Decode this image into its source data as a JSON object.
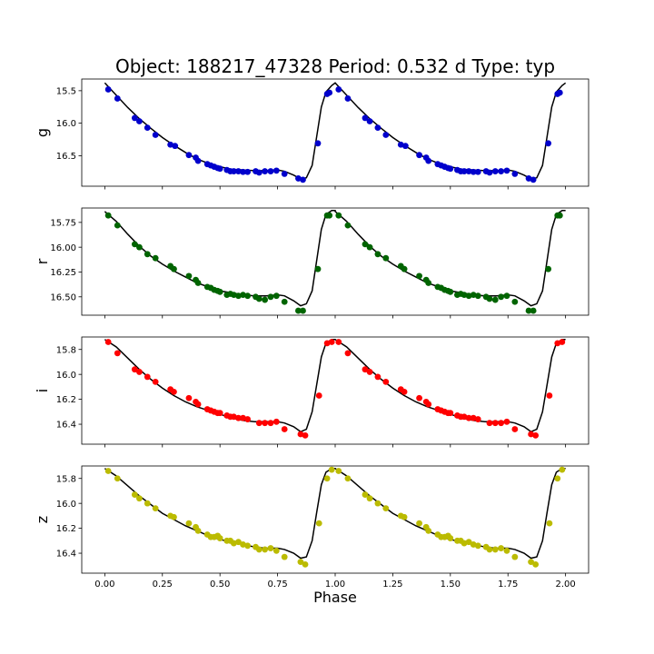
{
  "chart_data": {
    "type": "scatter",
    "title": "Object: 188217_47328    Period: 0.532 d    Type: typ",
    "xlabel": "Phase",
    "xlim": [
      -0.1,
      2.1
    ],
    "x_ticks": [
      0.0,
      0.25,
      0.5,
      0.75,
      1.0,
      1.25,
      1.5,
      1.75,
      2.0
    ],
    "x_tick_labels": [
      "0.00",
      "0.25",
      "0.50",
      "0.75",
      "1.00",
      "1.25",
      "1.50",
      "1.75",
      "2.00"
    ],
    "panels": [
      {
        "band": "g",
        "color": "#0000cc",
        "ylim": [
          15.32,
          16.97
        ],
        "inverted": true,
        "y_ticks": [
          15.5,
          16.0,
          16.5
        ],
        "y_tick_labels": [
          "15.5",
          "16.0",
          "16.5"
        ],
        "points": [
          [
            0.015,
            15.48
          ],
          [
            0.055,
            15.62
          ],
          [
            0.13,
            15.92
          ],
          [
            0.15,
            15.97
          ],
          [
            0.185,
            16.07
          ],
          [
            0.22,
            16.18
          ],
          [
            0.285,
            16.33
          ],
          [
            0.305,
            16.35
          ],
          [
            0.365,
            16.49
          ],
          [
            0.395,
            16.53
          ],
          [
            0.405,
            16.58
          ],
          [
            0.445,
            16.63
          ],
          [
            0.46,
            16.65
          ],
          [
            0.475,
            16.67
          ],
          [
            0.49,
            16.69
          ],
          [
            0.5,
            16.7
          ],
          [
            0.53,
            16.72
          ],
          [
            0.545,
            16.74
          ],
          [
            0.56,
            16.74
          ],
          [
            0.58,
            16.74
          ],
          [
            0.6,
            16.75
          ],
          [
            0.62,
            16.75
          ],
          [
            0.655,
            16.74
          ],
          [
            0.67,
            16.76
          ],
          [
            0.695,
            16.74
          ],
          [
            0.72,
            16.74
          ],
          [
            0.745,
            16.73
          ],
          [
            0.78,
            16.78
          ],
          [
            0.84,
            16.85
          ],
          [
            0.86,
            16.87
          ],
          [
            0.925,
            16.31
          ],
          [
            0.965,
            15.55
          ],
          [
            0.975,
            15.53
          ]
        ],
        "model": [
          [
            0.0,
            15.38
          ],
          [
            0.05,
            15.57
          ],
          [
            0.1,
            15.76
          ],
          [
            0.15,
            15.93
          ],
          [
            0.2,
            16.08
          ],
          [
            0.25,
            16.22
          ],
          [
            0.3,
            16.34
          ],
          [
            0.35,
            16.45
          ],
          [
            0.4,
            16.55
          ],
          [
            0.45,
            16.62
          ],
          [
            0.5,
            16.67
          ],
          [
            0.55,
            16.71
          ],
          [
            0.6,
            16.72
          ],
          [
            0.65,
            16.73
          ],
          [
            0.7,
            16.73
          ],
          [
            0.75,
            16.72
          ],
          [
            0.78,
            16.74
          ],
          [
            0.82,
            16.8
          ],
          [
            0.85,
            16.86
          ],
          [
            0.875,
            16.84
          ],
          [
            0.9,
            16.65
          ],
          [
            0.92,
            16.2
          ],
          [
            0.94,
            15.75
          ],
          [
            0.96,
            15.52
          ],
          [
            0.985,
            15.42
          ],
          [
            1.0,
            15.38
          ]
        ]
      },
      {
        "band": "r",
        "color": "#006400",
        "ylim": [
          15.605,
          16.685
        ],
        "inverted": true,
        "y_ticks": [
          15.75,
          16.0,
          16.25,
          16.5
        ],
        "y_tick_labels": [
          "15.75",
          "16.00",
          "16.25",
          "16.50"
        ],
        "points": [
          [
            0.015,
            15.68
          ],
          [
            0.055,
            15.78
          ],
          [
            0.13,
            15.97
          ],
          [
            0.15,
            16.0
          ],
          [
            0.185,
            16.07
          ],
          [
            0.22,
            16.11
          ],
          [
            0.285,
            16.19
          ],
          [
            0.3,
            16.22
          ],
          [
            0.365,
            16.29
          ],
          [
            0.395,
            16.33
          ],
          [
            0.405,
            16.36
          ],
          [
            0.445,
            16.4
          ],
          [
            0.46,
            16.41
          ],
          [
            0.475,
            16.43
          ],
          [
            0.49,
            16.44
          ],
          [
            0.5,
            16.45
          ],
          [
            0.53,
            16.48
          ],
          [
            0.545,
            16.47
          ],
          [
            0.56,
            16.48
          ],
          [
            0.58,
            16.49
          ],
          [
            0.6,
            16.48
          ],
          [
            0.62,
            16.49
          ],
          [
            0.655,
            16.5
          ],
          [
            0.67,
            16.52
          ],
          [
            0.695,
            16.53
          ],
          [
            0.72,
            16.5
          ],
          [
            0.745,
            16.49
          ],
          [
            0.78,
            16.55
          ],
          [
            0.84,
            16.64
          ],
          [
            0.86,
            16.64
          ],
          [
            0.925,
            16.22
          ],
          [
            0.965,
            15.68
          ],
          [
            0.975,
            15.68
          ]
        ],
        "model": [
          [
            0.0,
            15.64
          ],
          [
            0.05,
            15.74
          ],
          [
            0.1,
            15.87
          ],
          [
            0.15,
            15.99
          ],
          [
            0.2,
            16.09
          ],
          [
            0.25,
            16.17
          ],
          [
            0.3,
            16.24
          ],
          [
            0.35,
            16.3
          ],
          [
            0.4,
            16.36
          ],
          [
            0.45,
            16.4
          ],
          [
            0.5,
            16.44
          ],
          [
            0.55,
            16.46
          ],
          [
            0.6,
            16.48
          ],
          [
            0.65,
            16.49
          ],
          [
            0.7,
            16.49
          ],
          [
            0.75,
            16.48
          ],
          [
            0.78,
            16.49
          ],
          [
            0.82,
            16.54
          ],
          [
            0.85,
            16.59
          ],
          [
            0.875,
            16.57
          ],
          [
            0.9,
            16.44
          ],
          [
            0.92,
            16.13
          ],
          [
            0.94,
            15.82
          ],
          [
            0.96,
            15.67
          ],
          [
            0.985,
            15.63
          ],
          [
            1.0,
            15.63
          ]
        ]
      },
      {
        "band": "i",
        "color": "#ff0000",
        "ylim": [
          15.7,
          16.56
        ],
        "inverted": true,
        "y_ticks": [
          15.8,
          16.0,
          16.2,
          16.4
        ],
        "y_tick_labels": [
          "15.8",
          "16.0",
          "16.2",
          "16.4"
        ],
        "points": [
          [
            0.015,
            15.74
          ],
          [
            0.055,
            15.83
          ],
          [
            0.13,
            15.96
          ],
          [
            0.15,
            15.98
          ],
          [
            0.185,
            16.02
          ],
          [
            0.22,
            16.06
          ],
          [
            0.285,
            16.12
          ],
          [
            0.3,
            16.14
          ],
          [
            0.365,
            16.19
          ],
          [
            0.395,
            16.22
          ],
          [
            0.405,
            16.24
          ],
          [
            0.445,
            16.28
          ],
          [
            0.46,
            16.29
          ],
          [
            0.475,
            16.3
          ],
          [
            0.49,
            16.31
          ],
          [
            0.5,
            16.31
          ],
          [
            0.53,
            16.33
          ],
          [
            0.545,
            16.34
          ],
          [
            0.56,
            16.34
          ],
          [
            0.58,
            16.35
          ],
          [
            0.6,
            16.35
          ],
          [
            0.62,
            16.36
          ],
          [
            0.67,
            16.39
          ],
          [
            0.695,
            16.39
          ],
          [
            0.72,
            16.39
          ],
          [
            0.745,
            16.38
          ],
          [
            0.78,
            16.44
          ],
          [
            0.85,
            16.48
          ],
          [
            0.87,
            16.49
          ],
          [
            0.93,
            16.17
          ],
          [
            0.965,
            15.75
          ],
          [
            0.985,
            15.74
          ]
        ],
        "model": [
          [
            0.0,
            15.72
          ],
          [
            0.05,
            15.78
          ],
          [
            0.1,
            15.87
          ],
          [
            0.15,
            15.96
          ],
          [
            0.2,
            16.04
          ],
          [
            0.25,
            16.11
          ],
          [
            0.3,
            16.17
          ],
          [
            0.35,
            16.22
          ],
          [
            0.4,
            16.26
          ],
          [
            0.45,
            16.29
          ],
          [
            0.5,
            16.32
          ],
          [
            0.55,
            16.35
          ],
          [
            0.6,
            16.37
          ],
          [
            0.65,
            16.38
          ],
          [
            0.7,
            16.38
          ],
          [
            0.75,
            16.38
          ],
          [
            0.78,
            16.39
          ],
          [
            0.82,
            16.42
          ],
          [
            0.85,
            16.46
          ],
          [
            0.875,
            16.44
          ],
          [
            0.9,
            16.3
          ],
          [
            0.92,
            16.08
          ],
          [
            0.94,
            15.86
          ],
          [
            0.96,
            15.75
          ],
          [
            0.985,
            15.72
          ],
          [
            1.0,
            15.72
          ]
        ]
      },
      {
        "band": "z",
        "color": "#bbbb00",
        "ylim": [
          15.7,
          16.56
        ],
        "inverted": true,
        "y_ticks": [
          15.8,
          16.0,
          16.2,
          16.4
        ],
        "y_tick_labels": [
          "15.8",
          "16.0",
          "16.2",
          "16.4"
        ],
        "points": [
          [
            0.015,
            15.74
          ],
          [
            0.055,
            15.8
          ],
          [
            0.13,
            15.93
          ],
          [
            0.15,
            15.96
          ],
          [
            0.185,
            16.0
          ],
          [
            0.22,
            16.04
          ],
          [
            0.285,
            16.1
          ],
          [
            0.3,
            16.11
          ],
          [
            0.365,
            16.16
          ],
          [
            0.395,
            16.19
          ],
          [
            0.405,
            16.22
          ],
          [
            0.445,
            16.25
          ],
          [
            0.46,
            16.27
          ],
          [
            0.475,
            16.27
          ],
          [
            0.49,
            16.26
          ],
          [
            0.5,
            16.28
          ],
          [
            0.53,
            16.3
          ],
          [
            0.545,
            16.3
          ],
          [
            0.56,
            16.32
          ],
          [
            0.58,
            16.31
          ],
          [
            0.6,
            16.33
          ],
          [
            0.62,
            16.34
          ],
          [
            0.655,
            16.35
          ],
          [
            0.67,
            16.37
          ],
          [
            0.695,
            16.37
          ],
          [
            0.72,
            16.36
          ],
          [
            0.745,
            16.38
          ],
          [
            0.78,
            16.43
          ],
          [
            0.85,
            16.47
          ],
          [
            0.87,
            16.49
          ],
          [
            0.93,
            16.16
          ],
          [
            0.965,
            15.8
          ],
          [
            0.985,
            15.73
          ]
        ],
        "model": [
          [
            0.0,
            15.72
          ],
          [
            0.05,
            15.78
          ],
          [
            0.1,
            15.86
          ],
          [
            0.15,
            15.94
          ],
          [
            0.2,
            16.01
          ],
          [
            0.25,
            16.08
          ],
          [
            0.3,
            16.13
          ],
          [
            0.35,
            16.18
          ],
          [
            0.4,
            16.22
          ],
          [
            0.45,
            16.26
          ],
          [
            0.5,
            16.29
          ],
          [
            0.55,
            16.31
          ],
          [
            0.6,
            16.33
          ],
          [
            0.65,
            16.35
          ],
          [
            0.7,
            16.36
          ],
          [
            0.75,
            16.36
          ],
          [
            0.78,
            16.37
          ],
          [
            0.82,
            16.4
          ],
          [
            0.85,
            16.44
          ],
          [
            0.875,
            16.43
          ],
          [
            0.9,
            16.3
          ],
          [
            0.92,
            16.07
          ],
          [
            0.94,
            15.85
          ],
          [
            0.96,
            15.75
          ],
          [
            0.985,
            15.72
          ],
          [
            1.0,
            15.72
          ]
        ]
      }
    ]
  }
}
